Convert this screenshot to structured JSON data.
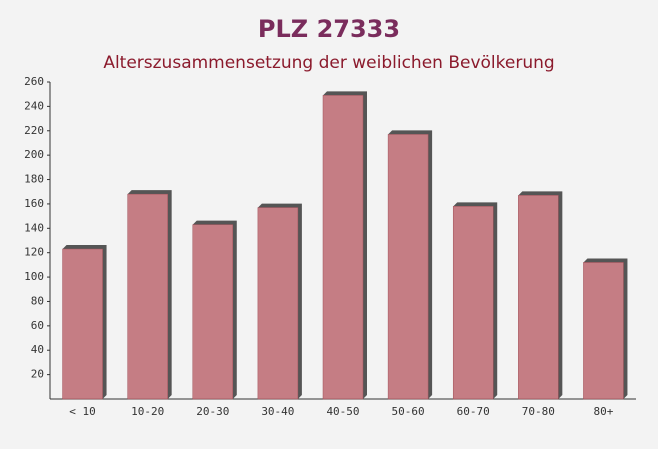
{
  "chart_data": {
    "type": "bar",
    "title": "PLZ 27333",
    "subtitle": "Alterszusammensetzung der weiblichen Bevölkerung",
    "categories": [
      "< 10",
      "10-20",
      "20-30",
      "30-40",
      "40-50",
      "50-60",
      "60-70",
      "70-80",
      "80+"
    ],
    "values": [
      123,
      168,
      143,
      157,
      249,
      217,
      158,
      167,
      112
    ],
    "color": "#c07078",
    "ylim": [
      0,
      260
    ],
    "yticks": [
      20,
      40,
      60,
      80,
      100,
      120,
      140,
      160,
      180,
      200,
      220,
      240,
      260
    ],
    "grid": false
  }
}
